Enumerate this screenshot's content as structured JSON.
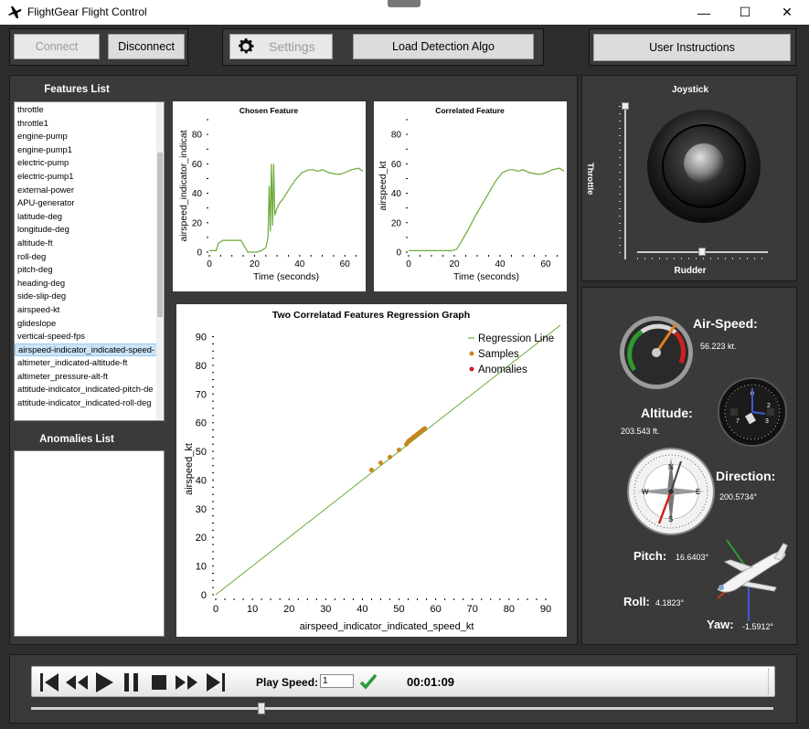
{
  "window": {
    "title": "FlightGear Flight Control",
    "minimize": "—",
    "maximize": "☐",
    "close": "✕"
  },
  "toolbar": {
    "connect": "Connect",
    "disconnect": "Disconnect",
    "settings": "Settings",
    "load_algo": "Load Detection Algo",
    "instructions": "User Instructions"
  },
  "features": {
    "title": "Features List",
    "items": [
      "throttle",
      "throttle1",
      "engine-pump",
      "engine-pump1",
      "electric-pump",
      "electric-pump1",
      "external-power",
      "APU-generator",
      "latitude-deg",
      "longitude-deg",
      "altitude-ft",
      "roll-deg",
      "pitch-deg",
      "heading-deg",
      "side-slip-deg",
      "airspeed-kt",
      "glideslope",
      "vertical-speed-fps",
      "airspeed-indicator_indicated-speed-",
      "altimeter_indicated-altitude-ft",
      "altimeter_pressure-alt-ft",
      "attitude-indicator_indicated-pitch-de",
      "attitude-indicator_indicated-roll-deg"
    ],
    "selected_index": 18
  },
  "anomalies": {
    "title": "Anomalies List",
    "items": []
  },
  "chosen_chart": {
    "title": "Chosen Feature",
    "ylabel": "airspeed_indicator_indicat",
    "xlabel": "Time (seconds)",
    "xticks": [
      "0",
      "20",
      "40",
      "60"
    ],
    "yticks": [
      "0",
      "20",
      "40",
      "60",
      "80"
    ]
  },
  "correlated_chart": {
    "title": "Correlated Feature",
    "ylabel": "airspeed_kt",
    "xlabel": "Time (seconds)",
    "xticks": [
      "0",
      "20",
      "40",
      "60"
    ],
    "yticks": [
      "0",
      "20",
      "40",
      "60",
      "80"
    ]
  },
  "regression_chart": {
    "title": "Two Correlatad Features Regression Graph",
    "ylabel": "airspeed_kt",
    "xlabel": "airspeed_indicator_indicated_speed_kt",
    "xticks": [
      "0",
      "10",
      "20",
      "30",
      "40",
      "50",
      "60",
      "70",
      "80",
      "90"
    ],
    "yticks": [
      "0",
      "10",
      "20",
      "30",
      "40",
      "50",
      "60",
      "70",
      "80",
      "90"
    ],
    "legend": [
      "Regression Line",
      "Samples",
      "Anomalies"
    ]
  },
  "chart_data": [
    {
      "type": "line",
      "title": "Chosen Feature",
      "xlabel": "Time (seconds)",
      "ylabel": "airspeed_indicator_indicat",
      "xlim": [
        0,
        68
      ],
      "ylim": [
        0,
        90
      ],
      "x": [
        0,
        3,
        4,
        6,
        12,
        14,
        17,
        18,
        21,
        23,
        25,
        26,
        26.5,
        27,
        27.5,
        28,
        28.5,
        29,
        30,
        31,
        33,
        35,
        38,
        41,
        44,
        46,
        48,
        50,
        53,
        56,
        58,
        60,
        63,
        66,
        68
      ],
      "y": [
        1,
        1,
        6,
        8,
        8,
        8,
        0,
        0,
        0,
        1,
        3,
        10,
        45,
        14,
        60,
        18,
        60,
        25,
        30,
        33,
        37,
        42,
        49,
        54,
        56,
        56,
        55,
        56,
        54,
        53,
        53,
        54,
        56,
        57,
        55
      ]
    },
    {
      "type": "line",
      "title": "Correlated Feature",
      "xlabel": "Time (seconds)",
      "ylabel": "airspeed_kt",
      "xlim": [
        0,
        68
      ],
      "ylim": [
        0,
        90
      ],
      "x": [
        0,
        10,
        17,
        19,
        21,
        23,
        26,
        29,
        32,
        35,
        38,
        41,
        44,
        46,
        48,
        50,
        53,
        56,
        58,
        60,
        63,
        66,
        68
      ],
      "y": [
        1,
        1,
        1,
        1,
        2,
        7,
        15,
        24,
        32,
        40,
        48,
        54,
        56,
        56,
        55,
        56,
        54,
        53,
        53,
        54,
        56,
        57,
        55
      ]
    },
    {
      "type": "scatter",
      "title": "Two Correlatad Features Regression Graph",
      "xlabel": "airspeed_indicator_indicated_speed_kt",
      "ylabel": "airspeed_kt",
      "xlim": [
        0,
        94
      ],
      "ylim": [
        0,
        94
      ],
      "series": [
        {
          "name": "Regression Line",
          "x": [
            0,
            94
          ],
          "y": [
            0,
            94
          ]
        },
        {
          "name": "Samples",
          "x": [
            42.5,
            45,
            47.5,
            50,
            52,
            52.5,
            53,
            53.5,
            54,
            54.5,
            55,
            55.5,
            56,
            56.5,
            57
          ],
          "y": [
            43.5,
            46,
            48,
            50.5,
            52.5,
            53.5,
            54,
            54.5,
            55,
            55.5,
            56,
            56.5,
            57,
            57.5,
            58
          ]
        },
        {
          "name": "Anomalies",
          "x": [],
          "y": []
        }
      ]
    }
  ],
  "joystick": {
    "title": "Joystick",
    "throttle_label": "Throttle",
    "rudder_label": "Rudder",
    "throttle": 1.0,
    "rudder": 0.5
  },
  "instruments": {
    "airspeed_label": "Air-Speed:",
    "airspeed_value": "56.223 kt.",
    "altitude_label": "Altitude:",
    "altitude_value": "203.543 ft.",
    "direction_label": "Direction:",
    "direction_value": "200.5734°",
    "pitch_label": "Pitch:",
    "pitch_value": "16.6403°",
    "roll_label": "Roll:",
    "roll_value": "4.1823°",
    "yaw_label": "Yaw:",
    "yaw_value": "-1.5912°",
    "compass_letters": [
      "N",
      "E",
      "S",
      "W"
    ]
  },
  "playback": {
    "speed_label": "Play Speed:",
    "speed_value": "1",
    "time": "00:01:09",
    "progress": 0.31
  },
  "colors": {
    "series_line": "#6aaa3a",
    "samples": "#c8861b",
    "anomalies": "#cc2020",
    "needle": "#e08020"
  }
}
